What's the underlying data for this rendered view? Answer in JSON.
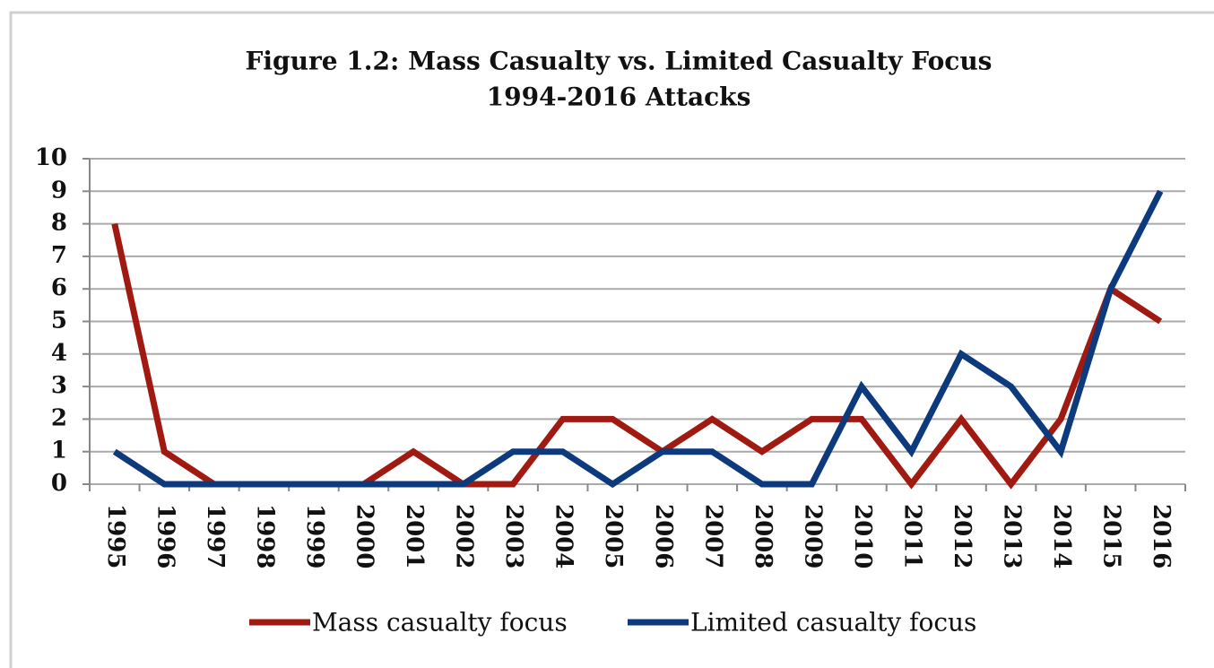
{
  "chart_data": {
    "type": "line",
    "title": [
      "Figure 1.2:  Mass Casualty vs. Limited Casualty Focus",
      "1994-2016 Attacks"
    ],
    "categories": [
      "1995",
      "1996",
      "1997",
      "1998",
      "1999",
      "2000",
      "2001",
      "2002",
      "2003",
      "2004",
      "2005",
      "2006",
      "2007",
      "2008",
      "2009",
      "2010",
      "2011",
      "2012",
      "2013",
      "2014",
      "2015",
      "2016"
    ],
    "series": [
      {
        "name": "Mass casualty focus",
        "color": "#a11a12",
        "values": [
          8,
          1,
          0,
          0,
          0,
          0,
          1,
          0,
          0,
          2,
          2,
          1,
          2,
          1,
          2,
          2,
          0,
          2,
          0,
          2,
          6,
          5
        ]
      },
      {
        "name": "Limited casualty focus",
        "color": "#0c3a7c",
        "values": [
          1,
          0,
          0,
          0,
          0,
          0,
          0,
          0,
          1,
          1,
          0,
          1,
          1,
          0,
          0,
          3,
          1,
          4,
          3,
          1,
          6,
          9
        ]
      }
    ],
    "ylim": [
      0,
      10
    ],
    "yticks": [
      0,
      1,
      2,
      3,
      4,
      5,
      6,
      7,
      8,
      9,
      10
    ],
    "grid": true,
    "legend": "bottom"
  }
}
